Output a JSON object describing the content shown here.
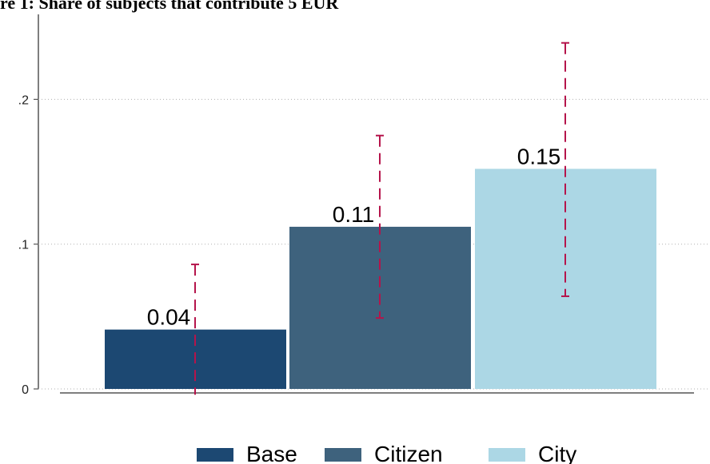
{
  "chart_data": {
    "type": "bar",
    "title": "re 1: Share of subjects that contribute 5 EUR",
    "categories": [
      "Base",
      "Citizen",
      "City"
    ],
    "values": [
      0.04,
      0.11,
      0.15
    ],
    "bar_values": [
      0.041,
      0.112,
      0.152
    ],
    "data_labels": [
      "0.04",
      "0.11",
      "0.15"
    ],
    "error_low": [
      -0.004,
      0.049,
      0.064
    ],
    "error_high": [
      0.086,
      0.175,
      0.239
    ],
    "colors": [
      "#1c4872",
      "#3e627d",
      "#acd7e5"
    ],
    "error_color": "#b5144b",
    "ylim": [
      0,
      0.24
    ],
    "yticks": [
      {
        "value": 0,
        "label": "0"
      },
      {
        "value": 0.1,
        "label": ".1"
      },
      {
        "value": 0.2,
        "label": ".2"
      }
    ],
    "grid": true,
    "legend": {
      "position": "bottom",
      "entries": [
        "Base",
        "Citizen",
        "City"
      ]
    },
    "xlabel": "",
    "ylabel": ""
  }
}
